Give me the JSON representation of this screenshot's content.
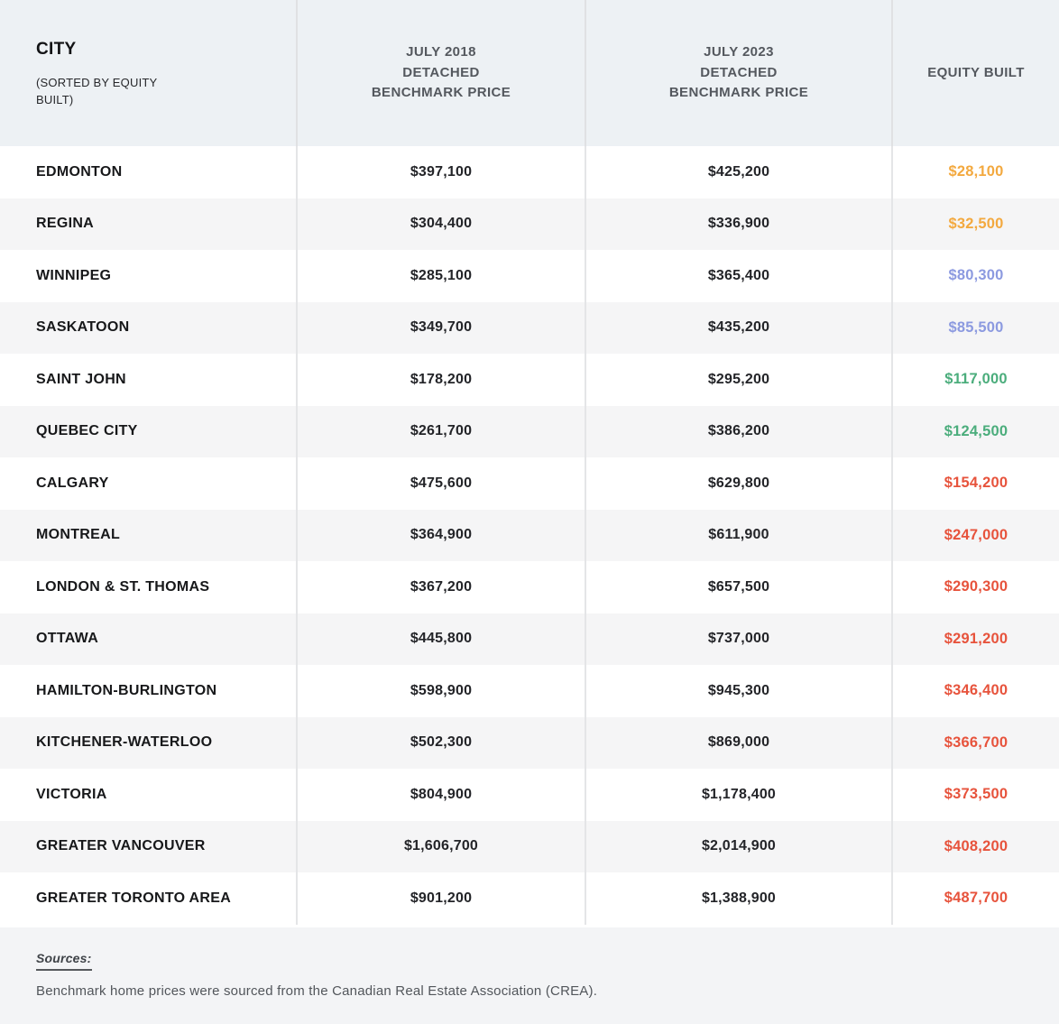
{
  "table": {
    "header": {
      "city_title": "CITY",
      "city_subtitle": "(SORTED BY EQUITY\nBUILT)",
      "col_2018": "JULY 2018\nDETACHED\nBENCHMARK PRICE",
      "col_2023": "JULY 2023\nDETACHED\nBENCHMARK PRICE",
      "col_equity": "EQUITY BUILT"
    },
    "rows": [
      {
        "city": "EDMONTON",
        "price_2018": "$397,100",
        "price_2023": "$425,200",
        "equity": "$28,100",
        "equity_color": "#F3A93F"
      },
      {
        "city": "REGINA",
        "price_2018": "$304,400",
        "price_2023": "$336,900",
        "equity": "$32,500",
        "equity_color": "#F3A93F"
      },
      {
        "city": "WINNIPEG",
        "price_2018": "$285,100",
        "price_2023": "$365,400",
        "equity": "$80,300",
        "equity_color": "#8C9AE0"
      },
      {
        "city": "SASKATOON",
        "price_2018": "$349,700",
        "price_2023": "$435,200",
        "equity": "$85,500",
        "equity_color": "#8C9AE0"
      },
      {
        "city": "SAINT JOHN",
        "price_2018": "$178,200",
        "price_2023": "$295,200",
        "equity": "$117,000",
        "equity_color": "#4BAD7C"
      },
      {
        "city": "QUEBEC CITY",
        "price_2018": "$261,700",
        "price_2023": "$386,200",
        "equity": "$124,500",
        "equity_color": "#4BAD7C"
      },
      {
        "city": "CALGARY",
        "price_2018": "$475,600",
        "price_2023": "$629,800",
        "equity": "$154,200",
        "equity_color": "#E7533C"
      },
      {
        "city": "MONTREAL",
        "price_2018": "$364,900",
        "price_2023": "$611,900",
        "equity": "$247,000",
        "equity_color": "#E7533C"
      },
      {
        "city": "LONDON & ST. THOMAS",
        "price_2018": "$367,200",
        "price_2023": "$657,500",
        "equity": "$290,300",
        "equity_color": "#E7533C"
      },
      {
        "city": "OTTAWA",
        "price_2018": "$445,800",
        "price_2023": "$737,000",
        "equity": "$291,200",
        "equity_color": "#E7533C"
      },
      {
        "city": "HAMILTON-BURLINGTON",
        "price_2018": "$598,900",
        "price_2023": "$945,300",
        "equity": "$346,400",
        "equity_color": "#E7533C"
      },
      {
        "city": "KITCHENER-WATERLOO",
        "price_2018": "$502,300",
        "price_2023": "$869,000",
        "equity": "$366,700",
        "equity_color": "#E7533C"
      },
      {
        "city": "VICTORIA",
        "price_2018": "$804,900",
        "price_2023": "$1,178,400",
        "equity": "$373,500",
        "equity_color": "#E7533C"
      },
      {
        "city": "GREATER VANCOUVER",
        "price_2018": "$1,606,700",
        "price_2023": "$2,014,900",
        "equity": "$408,200",
        "equity_color": "#E7533C"
      },
      {
        "city": "GREATER TORONTO AREA",
        "price_2018": "$901,200",
        "price_2023": "$1,388,900",
        "equity": "$487,700",
        "equity_color": "#E7533C"
      }
    ]
  },
  "footer": {
    "sources_label": "Sources:",
    "sources_text": "Benchmark home prices were sourced from the Canadian Real Estate Association (CREA)."
  },
  "colors": {
    "header_bg": "#edf1f4",
    "row_stripe_bg": "#f5f5f6",
    "footer_bg": "#f3f4f6",
    "divider": "#e0e1e3",
    "equity_low": "#F3A93F",
    "equity_mid_low": "#8C9AE0",
    "equity_mid": "#4BAD7C",
    "equity_high": "#E7533C"
  },
  "chart_data": {
    "type": "table",
    "title": "Equity built on detached homes by city, July 2018 vs July 2023",
    "columns": [
      "CITY (SORTED BY EQUITY BUILT)",
      "JULY 2018 DETACHED BENCHMARK PRICE",
      "JULY 2023 DETACHED BENCHMARK PRICE",
      "EQUITY BUILT"
    ],
    "rows": [
      [
        "EDMONTON",
        397100,
        425200,
        28100
      ],
      [
        "REGINA",
        304400,
        336900,
        32500
      ],
      [
        "WINNIPEG",
        285100,
        365400,
        80300
      ],
      [
        "SASKATOON",
        349700,
        435200,
        85500
      ],
      [
        "SAINT JOHN",
        178200,
        295200,
        117000
      ],
      [
        "QUEBEC CITY",
        261700,
        386200,
        124500
      ],
      [
        "CALGARY",
        475600,
        629800,
        154200
      ],
      [
        "MONTREAL",
        364900,
        611900,
        247000
      ],
      [
        "LONDON & ST. THOMAS",
        367200,
        657500,
        290300
      ],
      [
        "OTTAWA",
        445800,
        737000,
        291200
      ],
      [
        "HAMILTON-BURLINGTON",
        598900,
        945300,
        346400
      ],
      [
        "KITCHENER-WATERLOO",
        502300,
        869000,
        366700
      ],
      [
        "VICTORIA",
        804900,
        1178400,
        373500
      ],
      [
        "GREATER VANCOUVER",
        1606700,
        2014900,
        408200
      ],
      [
        "GREATER TORONTO AREA",
        901200,
        1388900,
        487700
      ]
    ],
    "sources_note": "Benchmark home prices were sourced from the Canadian Real Estate Association (CREA)."
  }
}
